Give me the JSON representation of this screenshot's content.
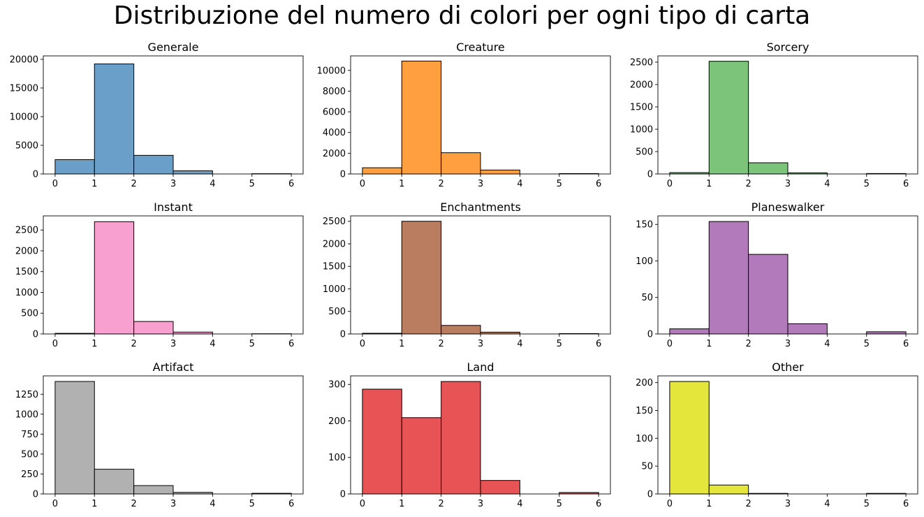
{
  "title": "Distribuzione del numero di colori per ogni tipo di carta",
  "chart_data": [
    {
      "type": "bar",
      "title": "Generale",
      "color": "#6a9fca",
      "categories": [
        "0",
        "1",
        "2",
        "3",
        "4",
        "5"
      ],
      "values": [
        2500,
        19200,
        3250,
        550,
        0,
        50
      ],
      "ylim": [
        0,
        20600
      ],
      "yticks": [
        0,
        5000,
        10000,
        15000,
        20000
      ],
      "xticks": [
        0,
        1,
        2,
        3,
        4,
        5,
        6
      ]
    },
    {
      "type": "bar",
      "title": "Creature",
      "color": "#ff9f40",
      "categories": [
        "0",
        "1",
        "2",
        "3",
        "4",
        "5"
      ],
      "values": [
        600,
        10900,
        2050,
        380,
        0,
        40
      ],
      "ylim": [
        0,
        11400
      ],
      "yticks": [
        0,
        2000,
        4000,
        6000,
        8000,
        10000
      ],
      "xticks": [
        0,
        1,
        2,
        3,
        4,
        5,
        6
      ]
    },
    {
      "type": "bar",
      "title": "Sorcery",
      "color": "#7bc47a",
      "categories": [
        "0",
        "1",
        "2",
        "3",
        "4",
        "5"
      ],
      "values": [
        30,
        2520,
        250,
        25,
        0,
        10
      ],
      "ylim": [
        0,
        2640
      ],
      "yticks": [
        0,
        500,
        1000,
        1500,
        2000,
        2500
      ],
      "xticks": [
        0,
        1,
        2,
        3,
        4,
        5,
        6
      ]
    },
    {
      "type": "bar",
      "title": "Instant",
      "color": "#f8a0cf",
      "categories": [
        "0",
        "1",
        "2",
        "3",
        "4",
        "5"
      ],
      "values": [
        15,
        2700,
        300,
        45,
        0,
        5
      ],
      "ylim": [
        0,
        2840
      ],
      "yticks": [
        0,
        500,
        1000,
        1500,
        2000,
        2500
      ],
      "xticks": [
        0,
        1,
        2,
        3,
        4,
        5,
        6
      ]
    },
    {
      "type": "bar",
      "title": "Enchantments",
      "color": "#bb7d5f",
      "categories": [
        "0",
        "1",
        "2",
        "3",
        "4",
        "5"
      ],
      "values": [
        15,
        2500,
        190,
        40,
        0,
        8
      ],
      "ylim": [
        0,
        2620
      ],
      "yticks": [
        0,
        500,
        1000,
        1500,
        2000,
        2500
      ],
      "xticks": [
        0,
        1,
        2,
        3,
        4,
        5,
        6
      ]
    },
    {
      "type": "bar",
      "title": "Planeswalker",
      "color": "#b27aba",
      "categories": [
        "0",
        "1",
        "2",
        "3",
        "4",
        "5"
      ],
      "values": [
        7,
        154,
        109,
        14,
        0,
        3
      ],
      "ylim": [
        0,
        161.7
      ],
      "yticks": [
        0,
        50,
        100,
        150
      ],
      "xticks": [
        0,
        1,
        2,
        3,
        4,
        5,
        6
      ]
    },
    {
      "type": "bar",
      "title": "Artifact",
      "color": "#b1b1b1",
      "categories": [
        "0",
        "1",
        "2",
        "3",
        "4",
        "5"
      ],
      "values": [
        1410,
        310,
        105,
        20,
        0,
        8
      ],
      "ylim": [
        0,
        1480
      ],
      "yticks": [
        0,
        250,
        500,
        750,
        1000,
        1250
      ],
      "xticks": [
        0,
        1,
        2,
        3,
        4,
        5,
        6
      ]
    },
    {
      "type": "bar",
      "title": "Land",
      "color": "#e85356",
      "categories": [
        "0",
        "1",
        "2",
        "3",
        "4",
        "5"
      ],
      "values": [
        287,
        209,
        308,
        37,
        0,
        4
      ],
      "ylim": [
        0,
        323.4
      ],
      "yticks": [
        0,
        100,
        200,
        300
      ],
      "xticks": [
        0,
        1,
        2,
        3,
        4,
        5,
        6
      ]
    },
    {
      "type": "bar",
      "title": "Other",
      "color": "#e5e63b",
      "categories": [
        "0",
        "1",
        "2",
        "3",
        "4",
        "5"
      ],
      "values": [
        202,
        16,
        1,
        0,
        0,
        1
      ],
      "ylim": [
        0,
        212.1
      ],
      "yticks": [
        0,
        50,
        100,
        150,
        200
      ],
      "xticks": [
        0,
        1,
        2,
        3,
        4,
        5,
        6
      ]
    }
  ]
}
